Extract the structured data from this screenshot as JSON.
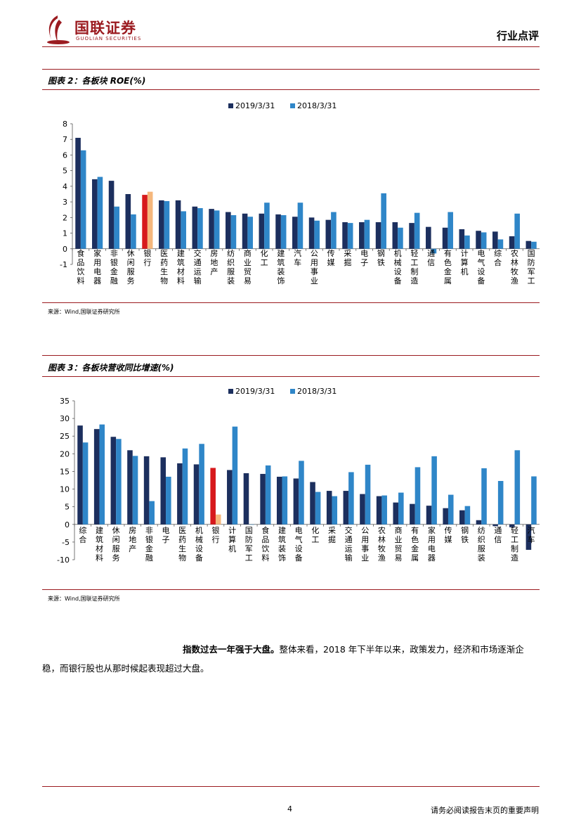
{
  "header": {
    "logo_cn": "国联证券",
    "logo_en": "GUOLIAN SECURITIES",
    "report_type": "行业点评",
    "brand_color": "#9b1b20"
  },
  "colors": {
    "series_2019": "#1c2f5e",
    "series_2018": "#2f86c8",
    "bank_2019": "#d7191c",
    "bank_2018": "#f5b77c"
  },
  "figure2": {
    "title": "图表 2：各板块 ROE(%)",
    "source": "来源：Wind,国联证券研究所"
  },
  "figure3": {
    "title": "图表 3：各板块营收同比增速(%)",
    "source": "来源：Wind,国联证券研究所"
  },
  "chart_data": [
    {
      "type": "bar",
      "title": "",
      "legend_position": "top-center",
      "ylim": [
        -1,
        8
      ],
      "yticks": [
        -1,
        0,
        1,
        2,
        3,
        4,
        5,
        6,
        7,
        8
      ],
      "highlight_category": "银行",
      "categories": [
        "食品饮料",
        "家用电器",
        "非银金融",
        "休闲服务",
        "银行",
        "医药生物",
        "建筑材料",
        "交通运输",
        "房地产",
        "纺织服装",
        "商业贸易",
        "化工",
        "建筑装饰",
        "汽车",
        "公用事业",
        "传媒",
        "采掘",
        "电子",
        "钢铁",
        "机械设备",
        "轻工制造",
        "通信",
        "有色金属",
        "计算机",
        "电气设备",
        "综合",
        "农林牧渔",
        "国防军工"
      ],
      "series": [
        {
          "name": "2019/3/31",
          "values": [
            7.1,
            4.45,
            4.35,
            3.5,
            3.45,
            3.1,
            3.1,
            2.7,
            2.55,
            2.35,
            2.25,
            2.25,
            2.2,
            2.05,
            2.0,
            1.85,
            1.7,
            1.7,
            1.7,
            1.7,
            1.65,
            1.4,
            1.35,
            1.25,
            1.15,
            1.1,
            0.8,
            0.5
          ]
        },
        {
          "name": "2018/3/31",
          "values": [
            6.3,
            4.6,
            2.7,
            2.2,
            3.65,
            3.05,
            2.4,
            2.6,
            2.45,
            2.15,
            2.05,
            2.95,
            2.15,
            2.95,
            1.8,
            2.35,
            1.65,
            1.85,
            3.55,
            1.35,
            2.3,
            -0.3,
            2.35,
            0.85,
            1.05,
            0.6,
            2.25,
            0.45
          ]
        }
      ]
    },
    {
      "type": "bar",
      "title": "",
      "legend_position": "top-center",
      "ylim": [
        -10,
        35
      ],
      "yticks": [
        -10,
        -5,
        0,
        5,
        10,
        15,
        20,
        25,
        30,
        35
      ],
      "highlight_category": "银行",
      "categories": [
        "综合",
        "建筑材料",
        "休闲服务",
        "房地产",
        "非银金融",
        "电子",
        "医药生物",
        "机械设备",
        "银行",
        "计算机",
        "国防军工",
        "食品饮料",
        "建筑装饰",
        "电气设备",
        "化工",
        "采掘",
        "交通运输",
        "公用事业",
        "农林牧渔",
        "商业贸易",
        "有色金属",
        "家用电器",
        "传媒",
        "钢铁",
        "纺织服装",
        "通信",
        "轻工制造",
        "汽车"
      ],
      "series": [
        {
          "name": "2019/3/31",
          "values": [
            28,
            27,
            24.8,
            21,
            19.3,
            19,
            17.3,
            17,
            16,
            15.4,
            14.5,
            14.3,
            13.5,
            13,
            12,
            9.5,
            9.5,
            8.6,
            8,
            6.2,
            5.8,
            5.3,
            4.6,
            4,
            1.2,
            -0.5,
            -0.8,
            -7.2
          ]
        },
        {
          "name": "2018/3/31",
          "values": [
            23.2,
            28.3,
            24.2,
            19.4,
            6.6,
            13.5,
            21.5,
            22.8,
            2.8,
            27.7,
            0,
            16.7,
            13.6,
            18,
            9.2,
            8,
            14.8,
            16.9,
            8.2,
            9,
            16.2,
            19.3,
            8.4,
            5.2,
            15.9,
            12.3,
            21,
            13.6
          ]
        }
      ]
    }
  ],
  "body": {
    "lead_bold": "指数过去一年强于大盘。",
    "text": "整体来看，2018 年下半年以来，政策发力，经济和市场逐渐企稳，而银行股也从那时候起表现超过大盘。"
  },
  "footer": {
    "page_number": "4",
    "disclaimer": "请务必阅读报告末页的重要声明"
  }
}
